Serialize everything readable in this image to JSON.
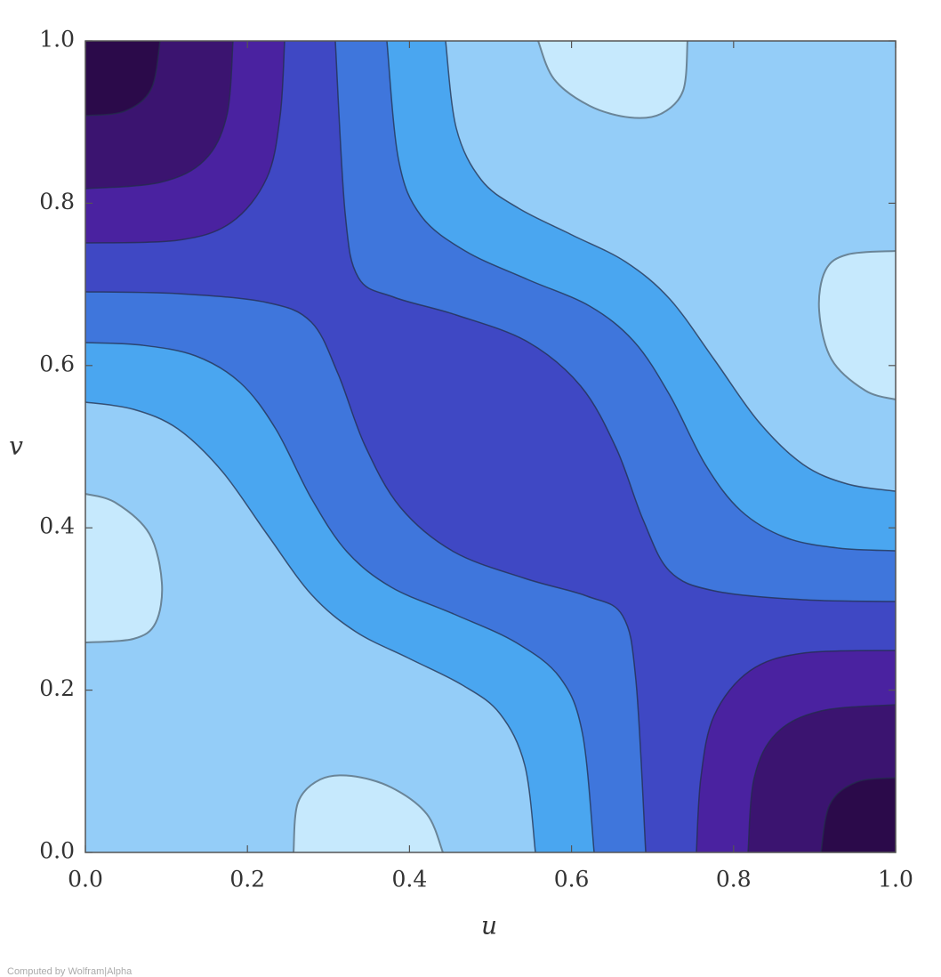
{
  "chart_data": {
    "type": "contour",
    "x_label": "u",
    "y_label": "v",
    "xlim": [
      0,
      1
    ],
    "ylim": [
      0,
      1
    ],
    "xticks": [
      {
        "value": 0,
        "label": "0.0"
      },
      0.2,
      0.4,
      0.6,
      0.8,
      {
        "value": 1,
        "label": "1.0"
      }
    ],
    "yticks": [
      {
        "value": 0,
        "label": "0.0"
      },
      0.2,
      0.4,
      0.6,
      0.8,
      {
        "value": 1,
        "label": "1.0"
      }
    ],
    "level_colors": [
      "#2b0a4a",
      "#3b1470",
      "#4a22a0",
      "#3f48c4",
      "#3f76dc",
      "#4aa6f0",
      "#94cdf8",
      "#c6e9fd"
    ],
    "footer": "Computed by Wolfram|Alpha"
  }
}
